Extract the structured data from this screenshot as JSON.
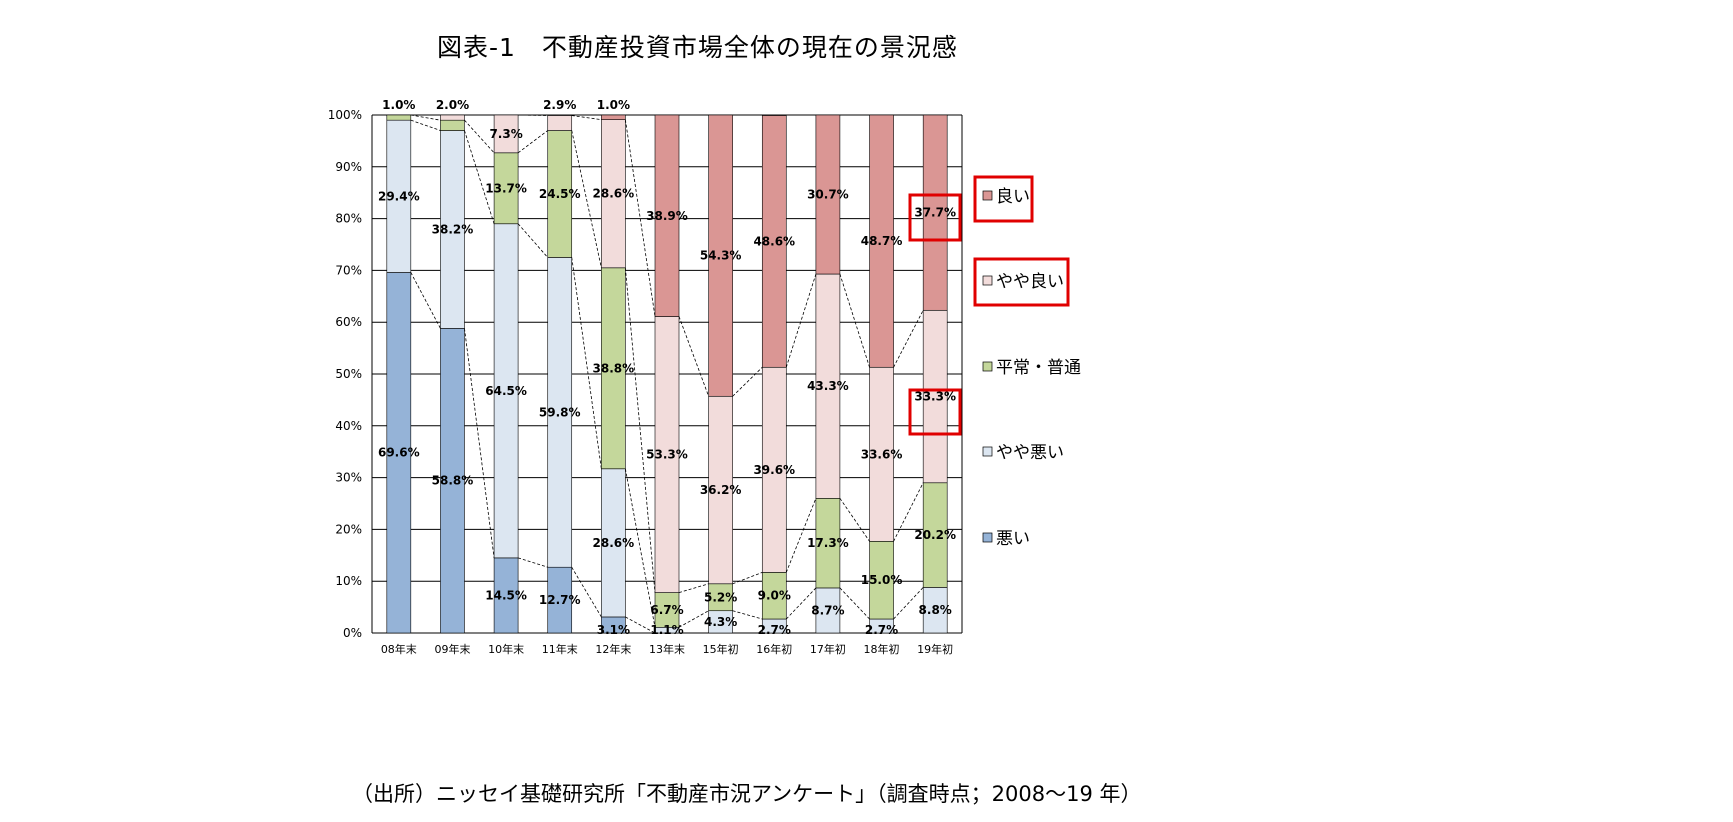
{
  "title": "図表-1　不動産投資市場全体の現在の景況感",
  "source": "（出所）ニッセイ基礎研究所「不動産市況アンケート」（調査時点；2008～19 年）",
  "colors": {
    "悪い": "#95b3d7",
    "やや悪い": "#dce6f1",
    "平常・普通": "#c4d79b",
    "やや良い": "#f2dcdb",
    "良い": "#da9694",
    "highlight_box": "#e00000",
    "grid": "#000000"
  },
  "legend": {
    "items": [
      {
        "label": "良い",
        "key": "良い",
        "highlighted": true
      },
      {
        "label": "やや良い",
        "key": "やや良い",
        "highlighted": true
      },
      {
        "label": "平常・普通",
        "key": "平常・普通",
        "highlighted": false
      },
      {
        "label": "やや悪い",
        "key": "やや悪い",
        "highlighted": false
      },
      {
        "label": "悪い",
        "key": "悪い",
        "highlighted": false
      }
    ]
  },
  "chart_data": {
    "type": "bar",
    "stacked": true,
    "percent_stacked": true,
    "title": "図表-1　不動産投資市場全体の現在の景況感",
    "xlabel": "",
    "ylabel": "",
    "ylim": [
      0,
      100
    ],
    "yticks": [
      "0%",
      "10%",
      "20%",
      "30%",
      "40%",
      "50%",
      "60%",
      "70%",
      "80%",
      "90%",
      "100%"
    ],
    "grid": true,
    "legend_position": "right",
    "series_lines": "dashed connector lines between segment boundaries",
    "categories": [
      "08年末",
      "09年末",
      "10年末",
      "11年末",
      "12年末",
      "13年末",
      "15年初",
      "16年初",
      "17年初",
      "18年初",
      "19年初"
    ],
    "series": [
      {
        "name": "悪い",
        "values": [
          69.6,
          58.8,
          14.5,
          12.7,
          3.1,
          0,
          0,
          0,
          0,
          0,
          0
        ]
      },
      {
        "name": "やや悪い",
        "values": [
          29.4,
          38.2,
          64.5,
          59.8,
          28.6,
          1.1,
          4.3,
          2.7,
          8.7,
          2.7,
          8.8
        ]
      },
      {
        "name": "平常・普通",
        "values": [
          1.0,
          2.0,
          13.7,
          24.5,
          38.8,
          6.7,
          5.2,
          9.0,
          17.3,
          15.0,
          20.2
        ]
      },
      {
        "name": "やや良い",
        "values": [
          0,
          1.0,
          7.3,
          2.9,
          28.6,
          53.3,
          36.2,
          39.6,
          43.3,
          33.6,
          33.3
        ]
      },
      {
        "name": "良い",
        "values": [
          0,
          0,
          0,
          0,
          1.0,
          38.9,
          54.3,
          48.6,
          30.7,
          48.7,
          37.7
        ]
      }
    ],
    "data_labels": [
      {
        "category": "08年末",
        "labels": {
          "悪い": "69.6%",
          "やや悪い": "29.4%",
          "平常・普通": "1.0%"
        }
      },
      {
        "category": "09年末",
        "labels": {
          "悪い": "58.8%",
          "やや悪い": "38.2%",
          "平常・普通": "2.0%"
        }
      },
      {
        "category": "10年末",
        "labels": {
          "悪い": "14.5%",
          "やや悪い": "64.5%",
          "平常・普通": "13.7%",
          "やや良い": "7.3%"
        }
      },
      {
        "category": "11年末",
        "labels": {
          "悪い": "12.7%",
          "やや悪い": "59.8%",
          "平常・普通": "24.5%",
          "やや良い": "2.9%"
        }
      },
      {
        "category": "12年末",
        "labels": {
          "悪い": "3.1%",
          "やや悪い": "28.6%",
          "平常・普通": "38.8%",
          "やや良い": "28.6%",
          "良い": "1.0%"
        }
      },
      {
        "category": "13年末",
        "labels": {
          "やや悪い": "1.1%",
          "平常・普通": "6.7%",
          "やや良い": "53.3%",
          "良い": "38.9%"
        }
      },
      {
        "category": "15年初",
        "labels": {
          "やや悪い": "4.3%",
          "平常・普通": "5.2%",
          "やや良い": "36.2%",
          "良い": "54.3%"
        }
      },
      {
        "category": "16年初",
        "labels": {
          "やや悪い": "2.7%",
          "平常・普通": "9.0%",
          "やや良い": "39.6%",
          "良い": "48.6%"
        }
      },
      {
        "category": "17年初",
        "labels": {
          "やや悪い": "8.7%",
          "平常・普通": "17.3%",
          "やや良い": "43.3%",
          "良い": "30.7%"
        }
      },
      {
        "category": "18年初",
        "labels": {
          "やや悪い": "2.7%",
          "平常・普通": "15.0%",
          "やや良い": "33.6%",
          "良い": "48.7%"
        }
      },
      {
        "category": "19年初",
        "labels": {
          "やや悪い": "8.8%",
          "平常・普通": "20.2%",
          "やや良い": "33.3%",
          "良い": "37.7%"
        }
      }
    ],
    "annotations": [
      {
        "type": "red-box",
        "target": "19年初 良い 37.7%"
      },
      {
        "type": "red-box",
        "target": "19年初 やや良い 33.3%"
      },
      {
        "type": "red-box",
        "target": "legend 良い"
      },
      {
        "type": "red-box",
        "target": "legend やや良い"
      }
    ]
  }
}
